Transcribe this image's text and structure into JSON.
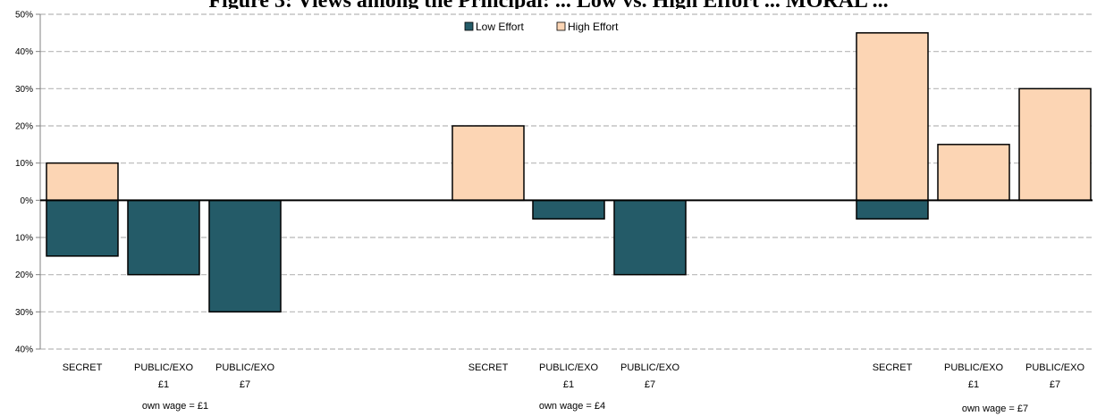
{
  "title": "Figure 3: Views among the Principal: ... Low vs. High Effort ... MORAL ...",
  "chart_data": {
    "type": "bar",
    "ylim": [
      -40,
      50
    ],
    "yticks": [
      {
        "v": 50,
        "label": "50%"
      },
      {
        "v": 40,
        "label": "40%"
      },
      {
        "v": 30,
        "label": "30%"
      },
      {
        "v": 20,
        "label": "20%"
      },
      {
        "v": 10,
        "label": "10%"
      },
      {
        "v": 0,
        "label": "0%"
      },
      {
        "v": -10,
        "label": "10%"
      },
      {
        "v": -20,
        "label": "20%"
      },
      {
        "v": -30,
        "label": "30%"
      },
      {
        "v": -40,
        "label": "40%"
      }
    ],
    "grid": true,
    "legend_position": "top-center",
    "series": [
      {
        "name": "Low Effort",
        "color": "#245b68"
      },
      {
        "name": "High Effort",
        "color": "#fcd5b4"
      }
    ],
    "groups": [
      {
        "label": "own wage = £1",
        "bars": [
          {
            "cat1": "SECRET",
            "cat2": "",
            "low": -15,
            "high": 10
          },
          {
            "cat1": "PUBLIC/EXO",
            "cat2": "£1",
            "low": -20,
            "high": 0
          },
          {
            "cat1": "PUBLIC/EXO",
            "cat2": "£7",
            "low": -30,
            "high": 0
          }
        ]
      },
      {
        "label": "own wage = £4",
        "bars": [
          {
            "cat1": "SECRET",
            "cat2": "",
            "low": 0,
            "high": 20
          },
          {
            "cat1": "PUBLIC/EXO",
            "cat2": "£1",
            "low": -5,
            "high": 0
          },
          {
            "cat1": "PUBLIC/EXO",
            "cat2": "£7",
            "low": -20,
            "high": 0
          }
        ]
      },
      {
        "label": "own wage = £7",
        "bars": [
          {
            "cat1": "SECRET",
            "cat2": "",
            "low": -5,
            "high": 45
          },
          {
            "cat1": "PUBLIC/EXO",
            "cat2": "£1",
            "low": 0,
            "high": 15
          },
          {
            "cat1": "PUBLIC/EXO",
            "cat2": "£7",
            "low": 0,
            "high": 30
          }
        ]
      }
    ]
  }
}
